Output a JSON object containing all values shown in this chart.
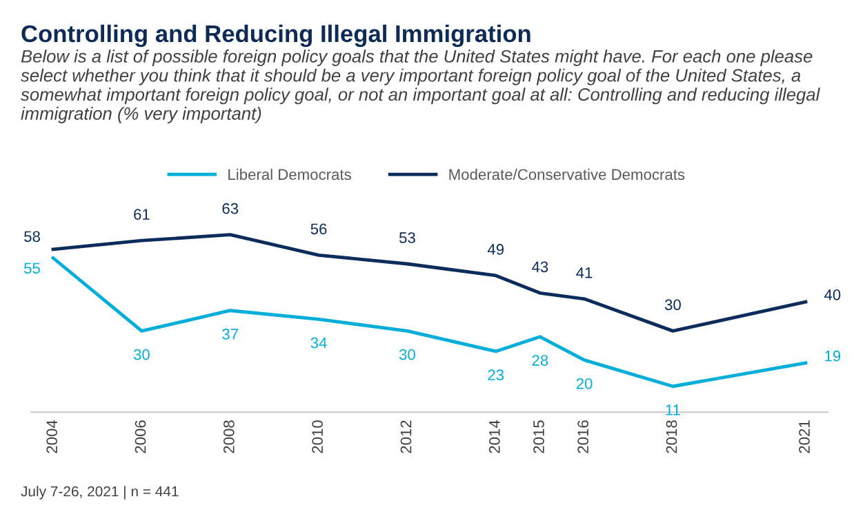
{
  "chart_data": {
    "type": "line",
    "title": "Controlling and Reducing Illegal Immigration",
    "subtitle": "Below is a list of possible foreign policy goals that the United States might have. For each one please select whether you think that it should be a very important foreign policy goal of the United States, a somewhat important foreign policy goal, or not an important goal at all: Controlling and reducing illegal immigration (% very important)",
    "x": [
      2004,
      2006,
      2008,
      2010,
      2012,
      2014,
      2015,
      2016,
      2018,
      2021
    ],
    "xlim": [
      2003.5,
      2021.5
    ],
    "xticks": [
      2004,
      2006,
      2008,
      2010,
      2012,
      2014,
      2015,
      2016,
      2018,
      2021
    ],
    "tick_labels": "x",
    "series": [
      {
        "name": "Liberal Democrats",
        "color": "#00aed9",
        "values": [
          55,
          30,
          37,
          34,
          30,
          23,
          28,
          20,
          11,
          19
        ]
      },
      {
        "name": "Moderate/Conservative Democrats",
        "color": "#0c2c5b",
        "values": [
          58,
          61,
          63,
          56,
          53,
          49,
          43,
          41,
          30,
          40
        ]
      }
    ],
    "data_labels": true,
    "legend": "top",
    "grid": false,
    "marker": "none",
    "line_style": "solid",
    "annotations": [
      "July 7-26, 2021 | n = 441"
    ]
  }
}
